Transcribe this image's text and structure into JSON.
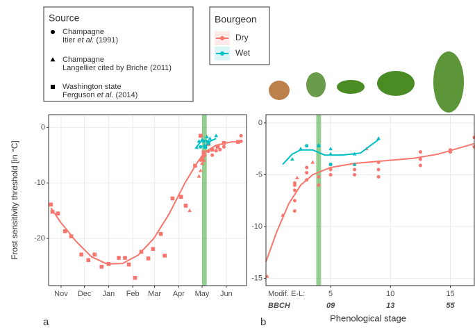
{
  "legend": {
    "source_title": "Source",
    "bourgeon_title": "Bourgeon",
    "sources": [
      {
        "lines": [
          [
            "Champagne"
          ],
          [
            "Itier ",
            "et al.",
            " (1991)"
          ]
        ],
        "shape": "circle"
      },
      {
        "lines": [
          [
            "Champagne"
          ],
          [
            "Langellier cited by Briche (2011)"
          ]
        ],
        "shape": "triangle"
      },
      {
        "lines": [
          [
            "Washington state"
          ],
          [
            "Ferguson ",
            "et al.",
            " (2014)"
          ]
        ],
        "shape": "square"
      }
    ]
  },
  "chart_data": [
    {
      "type": "scatter",
      "panel_label": "a",
      "y_label": "Frost sensitivity threshold [in °C]",
      "xlim": [
        15,
        269
      ],
      "ylim": [
        -28.5,
        2.3
      ],
      "xticks": [
        {
          "value": 31,
          "label": "Nov"
        },
        {
          "value": 61,
          "label": "Dec"
        },
        {
          "value": 92,
          "label": "Jan"
        },
        {
          "value": 123,
          "label": "Feb"
        },
        {
          "value": 151,
          "label": "Mar"
        },
        {
          "value": 182,
          "label": "Apr"
        },
        {
          "value": 212,
          "label": "May"
        },
        {
          "value": 243,
          "label": "Jun"
        }
      ],
      "yticks": [
        -20,
        -10,
        0
      ],
      "grid": true,
      "highlight": [
        212,
        218
      ],
      "series": [
        {
          "name": "Dry",
          "color": "#F8766D",
          "fit_x": [
            18,
            30,
            50,
            70,
            90,
            110,
            130,
            150,
            170,
            190,
            205,
            215,
            230,
            250,
            262
          ],
          "fit_values": [
            -14.5,
            -17,
            -20.5,
            -23.3,
            -24.6,
            -24.5,
            -23,
            -20,
            -15.5,
            -10,
            -6.5,
            -4.5,
            -3.2,
            -2.6,
            -2.6
          ],
          "by_source": [
            {
              "x": [
                210,
                212,
                214,
                215,
                220,
                225,
                230,
                235,
                240,
                262,
                262
              ],
              "values": [
                -5.9,
                -5.5,
                -6,
                -5,
                -4.3,
                -5,
                -4.2,
                -4,
                -3.5,
                -2.5,
                -1.5
              ]
            },
            {
              "x": [
                196,
                208,
                210,
                212,
                214
              ],
              "values": [
                -15,
                -8.8,
                -7.8,
                -6.5,
                -5.2
              ]
            },
            {
              "x": [
                18,
                20,
                27,
                36,
                44,
                57,
                66,
                74,
                83,
                92,
                105,
                113,
                118,
                126,
                134,
                143,
                149,
                159,
                164,
                174,
                185,
                191,
                203,
                210,
                214,
                220,
                225,
                232,
                240,
                258
              ],
              "values": [
                -13.9,
                -15.2,
                -15.5,
                -18.7,
                -19.6,
                -22.9,
                -23.9,
                -22.9,
                -25.1,
                -24.6,
                -23.5,
                -23.5,
                -24.7,
                -27.1,
                -22.4,
                -23.6,
                -21.9,
                -19.2,
                -23.1,
                -12.8,
                -12.5,
                -14.1,
                -6.9,
                -1.5,
                -4.5,
                -3,
                -4,
                -3.5,
                -2.8,
                -2.6
              ]
            }
          ]
        },
        {
          "name": "Wet",
          "color": "#00BFC4",
          "fit_x": [
            205,
            212,
            222,
            230
          ],
          "fit_values": [
            -3.5,
            -2.3,
            -2.5,
            -2
          ],
          "by_source": [
            {
              "x": [
                210,
                214
              ],
              "values": [
                -3.5,
                -2.5
              ]
            },
            {
              "x": [
                205,
                208,
                212,
                215,
                218,
                222,
                230
              ],
              "values": [
                -3.6,
                -2.5,
                -2.2,
                -3.2,
                -1.7,
                -2,
                -1.5
              ]
            },
            {
              "x": [
                216,
                220
              ],
              "values": [
                -3.5,
                -2.8
              ]
            }
          ]
        }
      ]
    },
    {
      "type": "scatter",
      "panel_label": "b",
      "x_label": "Phenological stage",
      "xrow_labels": [
        "Modif. E-L:",
        "BBCH"
      ],
      "bbch": [
        "09",
        "13",
        "55"
      ],
      "xlim": [
        -0.4,
        17
      ],
      "ylim": [
        -15.7,
        0.8
      ],
      "xticks": [
        5,
        10,
        15
      ],
      "yticks": [
        -15,
        -10,
        -5,
        0
      ],
      "grid": true,
      "highlight": [
        3.8,
        4.2
      ],
      "series": [
        {
          "name": "Dry",
          "color": "#F8766D",
          "fit_x": [
            -0.4,
            0.5,
            1.5,
            2.5,
            3.5,
            5,
            7,
            10,
            12,
            14,
            17
          ],
          "fit_values": [
            -13.4,
            -10.5,
            -7.8,
            -6,
            -5,
            -4.3,
            -3.9,
            -3.6,
            -3.4,
            -3,
            -2
          ],
          "by_source": [
            {
              "x": [
                2,
                2,
                2,
                2,
                2,
                3,
                3,
                3,
                4,
                4,
                5,
                5,
                5,
                7,
                7,
                7,
                9,
                9,
                9,
                12.5,
                12.5,
                12.5,
                15,
                15,
                17,
                17
              ],
              "values": [
                -8.5,
                -7.5,
                -6.5,
                -6,
                -5.8,
                -5.5,
                -4.8,
                -4.3,
                -5.2,
                -6,
                -5,
                -4.5,
                -4,
                -4,
                -4.5,
                -5,
                -3.8,
                -4.5,
                -5.2,
                -2.8,
                -3.5,
                -4.1,
                -2.6,
                -2.8,
                -1.4,
                -2.3
              ]
            },
            {
              "x": [
                -0.3,
                1,
                2.2,
                3.5,
                8
              ],
              "values": [
                -14.8,
                -8.9,
                -5.3,
                -3.8,
                -2.5
              ]
            },
            {
              "x": [],
              "values": []
            }
          ]
        },
        {
          "name": "Wet",
          "color": "#00BFC4",
          "fit_x": [
            1,
            1.8,
            2.5,
            3.5,
            4.5,
            6,
            7.5,
            9
          ],
          "fit_values": [
            -4,
            -3,
            -2.6,
            -2.6,
            -3.1,
            -3.1,
            -2.9,
            -1.6
          ],
          "by_source": [
            {
              "x": [
                3,
                4,
                5
              ],
              "values": [
                -2.2,
                -2.2,
                -4
              ]
            },
            {
              "x": [
                1.8,
                2.5,
                4,
                5,
                5,
                7,
                7,
                9
              ],
              "values": [
                -3.5,
                -2.5,
                -2.2,
                -2.5,
                -3,
                -3,
                -4,
                -1.5
              ]
            },
            {
              "x": [],
              "values": []
            }
          ]
        }
      ]
    }
  ]
}
